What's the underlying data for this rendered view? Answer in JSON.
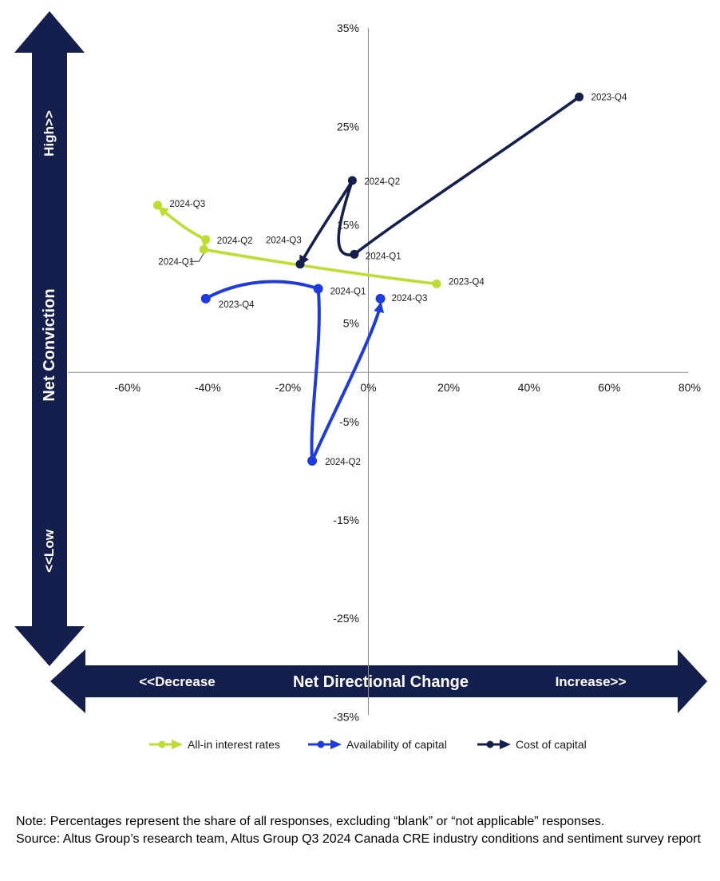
{
  "chart_data": {
    "type": "line",
    "title": "",
    "xlabel": "Net Directional Change",
    "ylabel": "Net Conviction",
    "grid": false,
    "legend_position": "bottom",
    "x_axis": {
      "tick_labels": [
        "-60%",
        "-40%",
        "-20%",
        "0%",
        "20%",
        "40%",
        "60%",
        "80%"
      ],
      "tick_values": [
        -60,
        -40,
        -20,
        0,
        20,
        40,
        60,
        80
      ],
      "range": [
        -75,
        80
      ],
      "direction_low": "<<Decrease",
      "direction_high": "Increase>>"
    },
    "y_axis": {
      "tick_labels": [
        "35%",
        "25%",
        "15%",
        "5%",
        "-5%",
        "-15%",
        "-25%",
        "-35%"
      ],
      "tick_values": [
        35,
        25,
        15,
        5,
        -5,
        -15,
        -25,
        -35
      ],
      "range": [
        -36,
        35
      ],
      "direction_high": "High>>",
      "direction_low": "<<Low"
    },
    "series": [
      {
        "name": "All-in interest rates",
        "color": "#bedd2e",
        "points": [
          {
            "quarter": "2023-Q4",
            "x": 17,
            "y": 9
          },
          {
            "quarter": "2024-Q1",
            "x": -41,
            "y": 12.5
          },
          {
            "quarter": "2024-Q2",
            "x": -40.5,
            "y": 13.5
          },
          {
            "quarter": "2024-Q3",
            "x": -52.5,
            "y": 17
          }
        ]
      },
      {
        "name": "Availability of capital",
        "color": "#1e3be1",
        "points": [
          {
            "quarter": "2023-Q4",
            "x": -40.5,
            "y": 7.5
          },
          {
            "quarter": "2024-Q1",
            "x": -12.5,
            "y": 8.5
          },
          {
            "quarter": "2024-Q2",
            "x": -14,
            "y": -9
          },
          {
            "quarter": "2024-Q3",
            "x": 3,
            "y": 7.5
          }
        ]
      },
      {
        "name": "Cost of capital",
        "color": "#141f4d",
        "points": [
          {
            "quarter": "2023-Q4",
            "x": 52.5,
            "y": 28
          },
          {
            "quarter": "2024-Q1",
            "x": -3.5,
            "y": 12
          },
          {
            "quarter": "2024-Q2",
            "x": -4,
            "y": 19.5
          },
          {
            "quarter": "2024-Q3",
            "x": -17,
            "y": 11
          }
        ]
      }
    ]
  },
  "colors": {
    "navy_arrow": "#141f4d",
    "axis_line": "#8c8c8c",
    "label_text": "#1a1a1a"
  },
  "note": {
    "line1": "Note: Percentages represent the share of all responses, excluding “blank” or “not applicable” responses.",
    "line2": "Source: Altus Group’s research team, Altus Group Q3 2024 Canada CRE industry conditions and sentiment survey report"
  }
}
